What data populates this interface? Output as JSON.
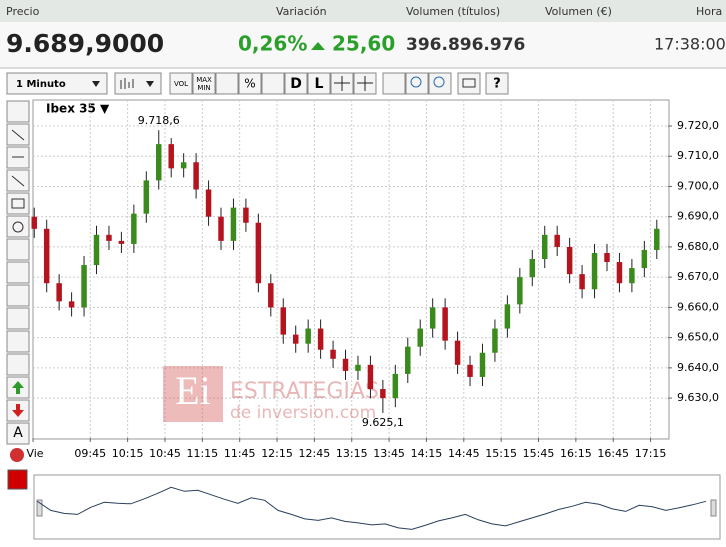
{
  "header": {
    "labels": [
      "Precio",
      "Variación",
      "Volumen (títulos)",
      "Volumen (€)",
      "Hora"
    ],
    "price": "9.689,9000",
    "change_pct": "0,26%",
    "change": "25,60",
    "volume": "396.896.976",
    "time": "17:38:00"
  },
  "toolbar": {
    "interval": "1 Minuto",
    "buttons": [
      "VOL",
      "MAX",
      "MIN",
      "%",
      "D",
      "L"
    ]
  },
  "tools": {
    "text": "A"
  },
  "watermark": {
    "logo": "Ei",
    "line1": "ESTRATEGIAS",
    "line2": "de inversion.com"
  },
  "chart_data": {
    "type": "candlestick",
    "title": "Ibex 35 ▼",
    "x": [
      "09:00",
      "09:10",
      "09:20",
      "09:30",
      "09:40",
      "09:50",
      "10:00",
      "10:10",
      "10:20",
      "10:30",
      "10:40",
      "10:50",
      "11:00",
      "11:10",
      "11:20",
      "11:30",
      "11:40",
      "11:50",
      "12:00",
      "12:10",
      "12:20",
      "12:30",
      "12:40",
      "12:50",
      "13:00",
      "13:10",
      "13:20",
      "13:30",
      "13:40",
      "13:50",
      "14:00",
      "14:10",
      "14:20",
      "14:30",
      "14:40",
      "14:50",
      "15:00",
      "15:10",
      "15:20",
      "15:30",
      "15:40",
      "15:50",
      "16:00",
      "16:10",
      "16:20",
      "16:30",
      "16:40",
      "16:50",
      "17:00",
      "17:10",
      "17:20"
    ],
    "open": [
      9690,
      9686,
      9668,
      9662,
      9660,
      9674,
      9684,
      9682,
      9681,
      9691,
      9702,
      9714,
      9706,
      9708,
      9699,
      9690,
      9682,
      9693,
      9688,
      9668,
      9660,
      9651,
      9648,
      9653,
      9646,
      9643,
      9639,
      9641,
      9633,
      9630,
      9638,
      9647,
      9653,
      9660,
      9649,
      9641,
      9637,
      9645,
      9653,
      9661,
      9670,
      9676,
      9684,
      9680,
      9671,
      9666,
      9678,
      9675,
      9668,
      9673,
      9679
    ],
    "high": [
      9693,
      9689,
      9671,
      9665,
      9677,
      9687,
      9687,
      9685,
      9694,
      9705,
      9718.6,
      9716,
      9711,
      9711,
      9702,
      9693,
      9696,
      9696,
      9691,
      9671,
      9663,
      9654,
      9656,
      9656,
      9649,
      9646,
      9644,
      9644,
      9636,
      9641,
      9650,
      9656,
      9663,
      9663,
      9652,
      9644,
      9648,
      9656,
      9664,
      9673,
      9679,
      9687,
      9687,
      9683,
      9674,
      9681,
      9681,
      9678,
      9676,
      9682,
      9689
    ],
    "low": [
      9683,
      9665,
      9659,
      9657,
      9657,
      9671,
      9679,
      9678,
      9678,
      9688,
      9699,
      9703,
      9703,
      9696,
      9687,
      9679,
      9679,
      9685,
      9665,
      9657,
      9648,
      9645,
      9645,
      9643,
      9640,
      9636,
      9636,
      9630,
      9625.1,
      9627,
      9635,
      9644,
      9650,
      9646,
      9638,
      9634,
      9634,
      9642,
      9650,
      9658,
      9667,
      9673,
      9677,
      9668,
      9663,
      9663,
      9672,
      9665,
      9665,
      9670,
      9676
    ],
    "close": [
      9686,
      9668,
      9662,
      9660,
      9674,
      9684,
      9682,
      9681,
      9691,
      9702,
      9714,
      9706,
      9708,
      9699,
      9690,
      9682,
      9693,
      9688,
      9668,
      9660,
      9651,
      9648,
      9653,
      9646,
      9643,
      9639,
      9641,
      9633,
      9630,
      9638,
      9647,
      9653,
      9660,
      9649,
      9641,
      9637,
      9645,
      9653,
      9661,
      9670,
      9676,
      9684,
      9680,
      9671,
      9666,
      9678,
      9675,
      9668,
      9673,
      9679,
      9686
    ],
    "up_color": "#3a8a1c",
    "down_color": "#b4141e",
    "nav_color": "#2b3f5c",
    "annotations": [
      {
        "value": 9718.6,
        "label": "9.718,6"
      },
      {
        "value": 9625.1,
        "label": "9.625,1"
      }
    ],
    "xlim": [
      "08:59",
      "17:29"
    ],
    "xticks": [
      {
        "value": "08:59",
        "label": "Vie"
      },
      "09:45",
      "10:15",
      "10:45",
      "11:15",
      "11:45",
      "12:15",
      "12:45",
      "13:15",
      "13:45",
      "14:15",
      "14:45",
      "15:15",
      "15:45",
      "16:15",
      "16:45",
      "17:15"
    ],
    "ylim": [
      9616.8,
      9728.6
    ],
    "yticks": [
      {
        "value": 9630,
        "label": "9.630,0"
      },
      {
        "value": 9640,
        "label": "9.640,0"
      },
      {
        "value": 9650,
        "label": "9.650,0"
      },
      {
        "value": 9660,
        "label": "9.660,0"
      },
      {
        "value": 9670,
        "label": "9.670,0"
      },
      {
        "value": 9680,
        "label": "9.680,0"
      },
      {
        "value": 9690,
        "label": "9.690,0"
      },
      {
        "value": 9700,
        "label": "9.700,0"
      },
      {
        "value": 9710,
        "label": "9.710,0"
      },
      {
        "value": 9720,
        "label": "9.720,0"
      }
    ],
    "grid": true
  }
}
